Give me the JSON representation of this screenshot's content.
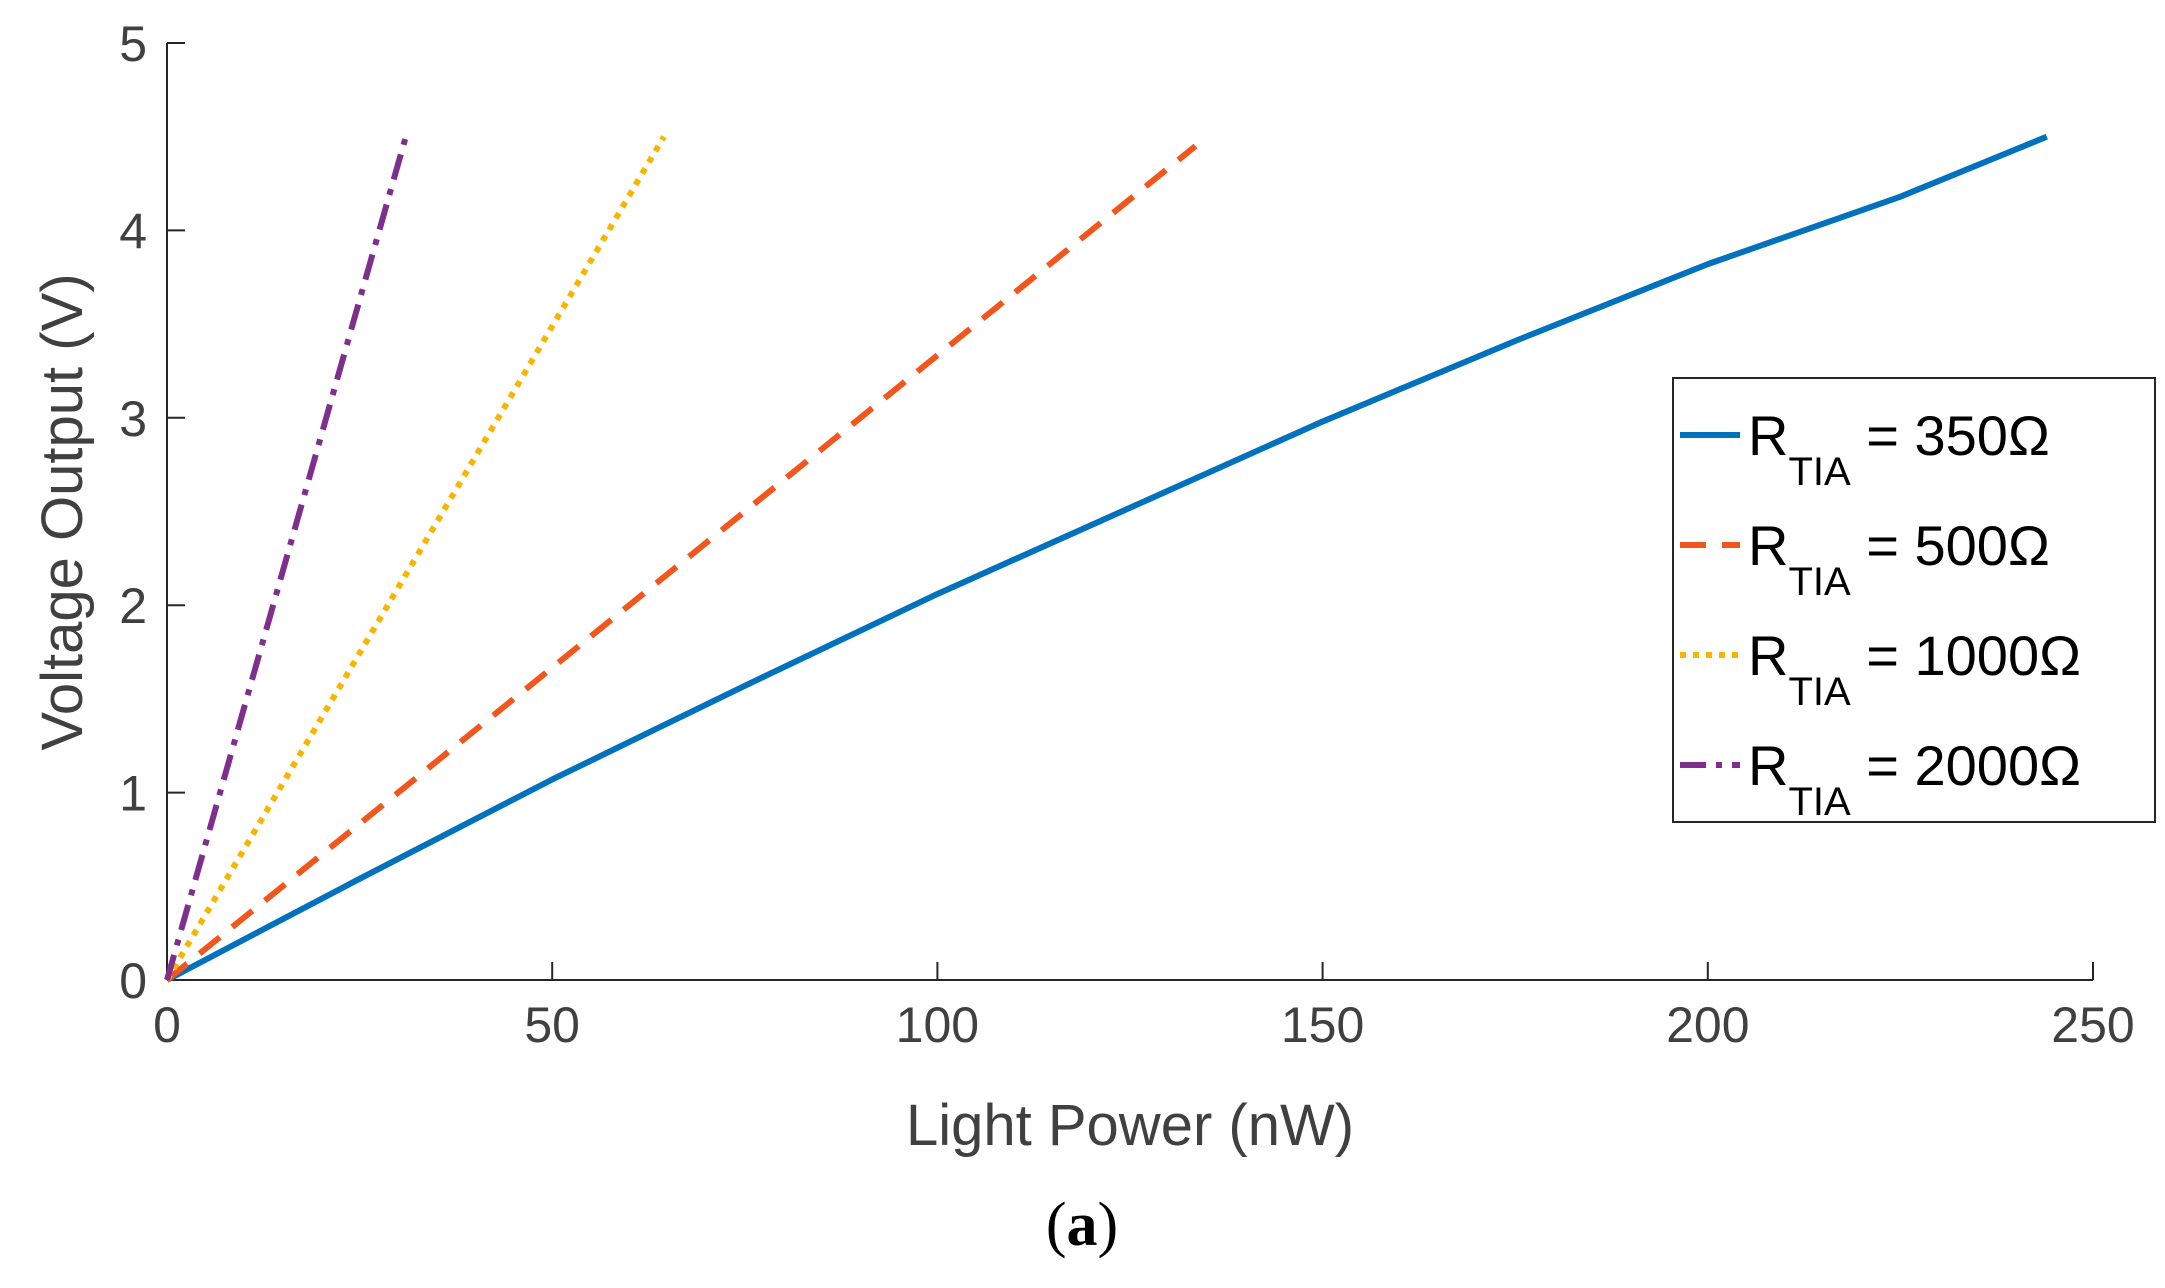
{
  "chart_data": {
    "type": "line",
    "xlabel": "Light Power (nW)",
    "ylabel": "Voltage Output (V)",
    "xlim": [
      0,
      250
    ],
    "ylim": [
      0,
      5
    ],
    "xticks": [
      0,
      50,
      100,
      150,
      200,
      250
    ],
    "yticks": [
      0,
      1,
      2,
      3,
      4,
      5
    ],
    "grid": false,
    "legend_position": "right",
    "series": [
      {
        "name": "R_TIA = 350Ω",
        "label_main": "R",
        "label_sub": "TIA",
        "label_rest": " = 350Ω",
        "color": "#0072BD",
        "style": "solid",
        "x": [
          0,
          25,
          50,
          75,
          100,
          125,
          150,
          175,
          200,
          225,
          244
        ],
        "y": [
          0,
          0.54,
          1.07,
          1.57,
          2.06,
          2.52,
          2.98,
          3.41,
          3.82,
          4.18,
          4.5
        ]
      },
      {
        "name": "R_TIA = 500Ω",
        "label_main": "R",
        "label_sub": "TIA",
        "label_rest": " = 500Ω",
        "color": "#F2561D",
        "style": "dashed",
        "x": [
          0,
          133.5
        ],
        "y": [
          0,
          4.45
        ]
      },
      {
        "name": "R_TIA = 1000Ω",
        "label_main": "R",
        "label_sub": "TIA",
        "label_rest": " = 1000Ω",
        "color": "#F7B500",
        "style": "dotted",
        "x": [
          0,
          64.5
        ],
        "y": [
          0,
          4.5
        ]
      },
      {
        "name": "R_TIA = 2000Ω",
        "label_main": "R",
        "label_sub": "TIA",
        "label_rest": " = 2000Ω",
        "color": "#7E2F8E",
        "style": "dashdot",
        "x": [
          0,
          31
        ],
        "y": [
          0,
          4.5
        ]
      }
    ]
  },
  "caption": {
    "open": "(",
    "letter": "a",
    "close": ")"
  }
}
